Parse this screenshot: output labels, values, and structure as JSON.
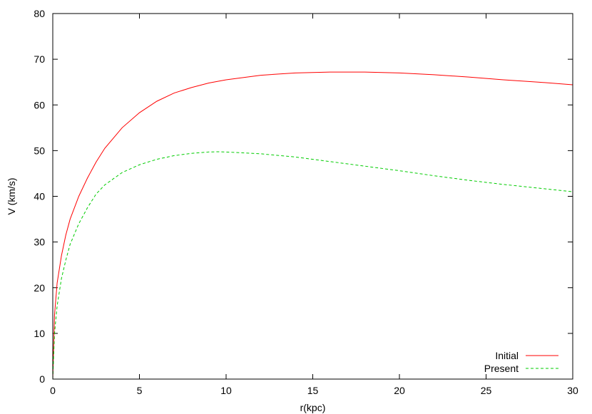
{
  "chart_data": {
    "type": "line",
    "title": "",
    "xlabel": "r(kpc)",
    "ylabel": "V (km/s)",
    "xlim": [
      0,
      30
    ],
    "ylim": [
      0,
      80
    ],
    "xticks": [
      "0",
      "5",
      "10",
      "15",
      "20",
      "25",
      "30"
    ],
    "yticks": [
      "0",
      "10",
      "20",
      "30",
      "40",
      "50",
      "60",
      "70",
      "80"
    ],
    "grid": false,
    "legend_position": "bottom-right",
    "series": [
      {
        "name": "Initial",
        "color": "#ff0000",
        "dash": "solid",
        "x": [
          0,
          0.1,
          0.25,
          0.5,
          0.75,
          1,
          1.5,
          2,
          2.5,
          3,
          4,
          5,
          6,
          7,
          8,
          9,
          10,
          12,
          14,
          16,
          18,
          20,
          22,
          24,
          26,
          28,
          30
        ],
        "y": [
          0,
          14,
          21,
          27,
          31.5,
          35,
          40,
          44,
          47.5,
          50.5,
          55,
          58.3,
          60.8,
          62.6,
          63.8,
          64.8,
          65.5,
          66.5,
          67,
          67.2,
          67.2,
          67,
          66.6,
          66.1,
          65.5,
          65,
          64.4
        ]
      },
      {
        "name": "Present",
        "color": "#00cc00",
        "dash": "dashed",
        "x": [
          0,
          0.1,
          0.25,
          0.5,
          0.75,
          1,
          1.5,
          2,
          2.5,
          3,
          4,
          5,
          6,
          7,
          8,
          9,
          9.5,
          10,
          12,
          14,
          16,
          18,
          20,
          22,
          24,
          26,
          28,
          30
        ],
        "y": [
          0,
          10,
          16,
          22,
          26,
          29.5,
          34,
          37.5,
          40.5,
          42.5,
          45.2,
          46.9,
          48.1,
          48.9,
          49.4,
          49.7,
          49.75,
          49.7,
          49.3,
          48.6,
          47.6,
          46.6,
          45.6,
          44.5,
          43.5,
          42.6,
          41.8,
          41
        ]
      }
    ]
  }
}
